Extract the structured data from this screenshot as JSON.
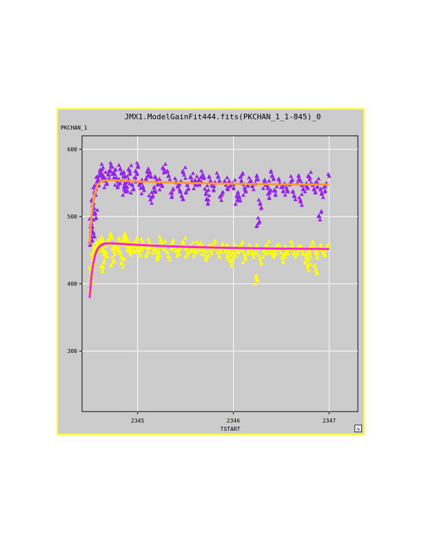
{
  "chart_data": {
    "type": "scatter",
    "title": "JMX1.ModelGainFit444.fits(PKCHAN_1_1-845)_0",
    "xlabel": "TSTART",
    "ylabel": "PKCHAN_1",
    "xlim": [
      2344.42,
      2347.3
    ],
    "ylim": [
      210,
      620
    ],
    "x_ticks": [
      2345,
      2346,
      2347
    ],
    "x_tick_labels": [
      "2345",
      "2346",
      "2347"
    ],
    "y_ticks": [
      300,
      400,
      500,
      600
    ],
    "y_tick_labels": [
      "300",
      "400",
      "500",
      "600"
    ],
    "grid": true,
    "colors": {
      "series_upper_points": "#9922ee",
      "series_upper_fit": "#ff9933",
      "series_lower_points": "#ffff00",
      "series_lower_fit": "#ff22cc",
      "background": "#cccccc",
      "grid": "#ffffff",
      "border": "#ffff33"
    },
    "series": [
      {
        "marker": "triangle",
        "color": "#9922ee",
        "x": [
          2344.5,
          2344.51,
          2344.52,
          2344.53,
          2344.54,
          2344.55,
          2344.57,
          2344.58,
          2344.6,
          2344.62,
          2344.63,
          2344.65,
          2344.67,
          2344.7,
          2344.72,
          2344.75,
          2344.78,
          2344.8,
          2344.82,
          2344.85,
          2344.88,
          2344.9,
          2344.92,
          2344.95,
          2344.98,
          2345.0,
          2345.03,
          2345.06,
          2345.1,
          2345.13,
          2345.17,
          2345.2,
          2345.24,
          2345.28,
          2345.32,
          2345.36,
          2345.4,
          2345.44,
          2345.48,
          2345.52,
          2345.56,
          2345.6,
          2345.64,
          2345.68,
          2345.72,
          2345.76,
          2345.8,
          2345.84,
          2345.88,
          2345.92,
          2345.96,
          2346.0,
          2346.04,
          2346.08,
          2346.12,
          2346.16,
          2346.2,
          2346.24,
          2346.28,
          2346.32,
          2346.36,
          2346.4,
          2346.44,
          2346.48,
          2346.52,
          2346.56,
          2346.6,
          2346.64,
          2346.68,
          2346.72,
          2346.76,
          2346.8,
          2346.84,
          2346.88,
          2346.92,
          2346.96,
          2347.0,
          2346.26,
          2346.9,
          2344.54,
          2344.56,
          2344.86,
          2345.14,
          2345.46,
          2345.74,
          2346.06,
          2346.38,
          2346.7
        ],
        "y": [
          462,
          478,
          490,
          505,
          520,
          535,
          545,
          552,
          560,
          565,
          570,
          558,
          548,
          562,
          575,
          566,
          555,
          548,
          570,
          560,
          545,
          552,
          568,
          540,
          558,
          575,
          550,
          542,
          560,
          565,
          538,
          555,
          548,
          570,
          560,
          535,
          552,
          548,
          565,
          540,
          558,
          548,
          555,
          560,
          538,
          552,
          545,
          560,
          532,
          550,
          545,
          548,
          525,
          560,
          540,
          550,
          545,
          555,
          520,
          550,
          545,
          560,
          538,
          550,
          545,
          540,
          552,
          530,
          555,
          548,
          545,
          558,
          540,
          550,
          535,
          545,
          560,
          490,
          500,
          470,
          505,
          540,
          528,
          530,
          525,
          530,
          535,
          525
        ]
      },
      {
        "marker": "plus",
        "color": "#ff9933",
        "fit": "exp-rise-decay",
        "fit_params": {
          "t0": 2344.5,
          "y0": 460,
          "peak": 556,
          "end": 547,
          "rise_tau": 0.035,
          "decay_tau": 0.9
        }
      },
      {
        "marker": "triangle",
        "color": "#ffff00",
        "x": [
          2344.5,
          2344.51,
          2344.52,
          2344.53,
          2344.54,
          2344.55,
          2344.57,
          2344.58,
          2344.6,
          2344.62,
          2344.63,
          2344.65,
          2344.67,
          2344.7,
          2344.72,
          2344.75,
          2344.78,
          2344.8,
          2344.82,
          2344.85,
          2344.88,
          2344.9,
          2344.92,
          2344.95,
          2344.98,
          2345.0,
          2345.03,
          2345.06,
          2345.1,
          2345.13,
          2345.17,
          2345.2,
          2345.24,
          2345.28,
          2345.32,
          2345.36,
          2345.4,
          2345.44,
          2345.48,
          2345.52,
          2345.56,
          2345.6,
          2345.64,
          2345.68,
          2345.72,
          2345.76,
          2345.8,
          2345.84,
          2345.88,
          2345.92,
          2345.96,
          2346.0,
          2346.04,
          2346.08,
          2346.12,
          2346.16,
          2346.2,
          2346.24,
          2346.28,
          2346.32,
          2346.36,
          2346.4,
          2346.44,
          2346.48,
          2346.52,
          2346.56,
          2346.6,
          2346.64,
          2346.68,
          2346.72,
          2346.76,
          2346.8,
          2346.84,
          2346.88,
          2346.92,
          2346.96,
          2347.0,
          2344.74,
          2344.84,
          2345.22,
          2345.98,
          2346.24,
          2346.78,
          2346.86,
          2344.64
        ],
        "y": [
          392,
          402,
          418,
          430,
          440,
          448,
          452,
          455,
          460,
          458,
          462,
          448,
          440,
          465,
          470,
          455,
          452,
          460,
          445,
          465,
          470,
          458,
          452,
          448,
          462,
          455,
          450,
          458,
          446,
          460,
          452,
          448,
          462,
          455,
          440,
          458,
          450,
          452,
          460,
          445,
          455,
          448,
          458,
          452,
          440,
          450,
          458,
          448,
          455,
          450,
          442,
          452,
          448,
          458,
          440,
          450,
          445,
          452,
          438,
          448,
          455,
          445,
          450,
          452,
          440,
          448,
          455,
          445,
          450,
          452,
          440,
          448,
          455,
          445,
          452,
          450,
          455,
          432,
          430,
          442,
          435,
          408,
          428,
          420,
          425
        ]
      },
      {
        "marker": "plus",
        "color": "#ff22cc",
        "fit": "exp-rise-decay",
        "fit_params": {
          "t0": 2344.5,
          "y0": 380,
          "peak": 463,
          "end": 451,
          "rise_tau": 0.04,
          "decay_tau": 0.9
        }
      }
    ]
  }
}
